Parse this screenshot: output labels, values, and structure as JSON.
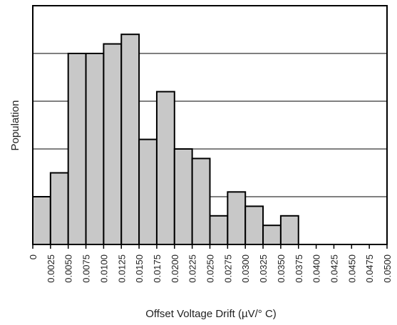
{
  "chart_data": {
    "type": "bar",
    "title": "",
    "xlabel": "Offset Voltage Drift (µV/° C)",
    "ylabel": "Population",
    "x_ticks": [
      "0",
      "0.0025",
      "0.0050",
      "0.0075",
      "0.0100",
      "0.0125",
      "0.0150",
      "0.0175",
      "0.0200",
      "0.0225",
      "0.0250",
      "0.0275",
      "0.0300",
      "0.0325",
      "0.0350",
      "0.0375",
      "0.0400",
      "0.0425",
      "0.0450",
      "0.0475",
      "0.0500"
    ],
    "bin_width": 0.0025,
    "values": [
      2,
      3,
      8,
      8,
      8.4,
      8.8,
      4.4,
      6.4,
      4,
      3.6,
      1.2,
      2.2,
      1.6,
      0.8,
      1.2
    ],
    "ylim": [
      0,
      10
    ],
    "y_gridlines": [
      2,
      4,
      6,
      8
    ],
    "grid": true,
    "colors": {
      "bar_fill": "#c8c8c8",
      "bar_stroke": "#000000",
      "grid": "#000000"
    }
  }
}
